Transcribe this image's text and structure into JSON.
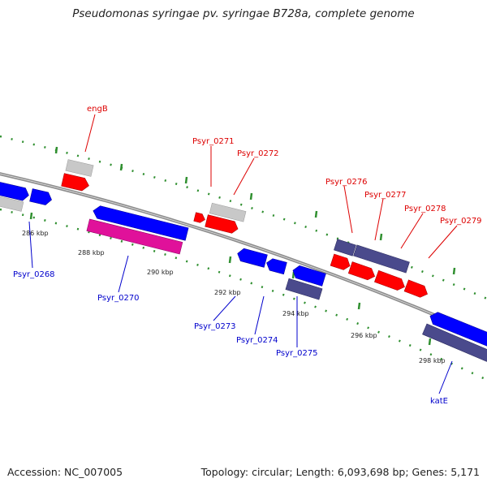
{
  "title": "Pseudomonas syringae pv. syringae B728a, complete genome",
  "footer": {
    "accession": "Accession: NC_007005",
    "topology": "Topology: circular; Length: 6,093,698 bp; Genes: 5,171"
  },
  "colors": {
    "forward_label": "#dd0000",
    "reverse_label": "#0000cc",
    "red_gene": "#ff0000",
    "blue_gene": "#0000ff",
    "grey_gene": "#c8c8c8",
    "slate_gene": "#4a4a8c",
    "pink_gene": "#e0119a",
    "backbone": "#8c8c8c",
    "dots": "#1f7f1f"
  },
  "ticks": [
    "286 kbp",
    "288 kbp",
    "290 kbp",
    "292 kbp",
    "294 kbp",
    "296 kbp",
    "298 kbp"
  ],
  "genes_forward": [
    {
      "name": "engB",
      "color": "red"
    },
    {
      "name": "Psyr_0271",
      "color": "red"
    },
    {
      "name": "Psyr_0272",
      "color": "red"
    },
    {
      "name": "Psyr_0276",
      "color": "slate"
    },
    {
      "name": "Psyr_0277",
      "color": "slate"
    },
    {
      "name": "Psyr_0278",
      "color": "red"
    },
    {
      "name": "Psyr_0279",
      "color": "red"
    }
  ],
  "genes_reverse": [
    {
      "name": "Psyr_0268",
      "color": "blue"
    },
    {
      "name": "Psyr_0270",
      "color": "pink"
    },
    {
      "name": "Psyr_0273",
      "color": "blue"
    },
    {
      "name": "Psyr_0274",
      "color": "blue"
    },
    {
      "name": "Psyr_0275",
      "color": "slate"
    },
    {
      "name": "katE",
      "color": "slate"
    }
  ]
}
